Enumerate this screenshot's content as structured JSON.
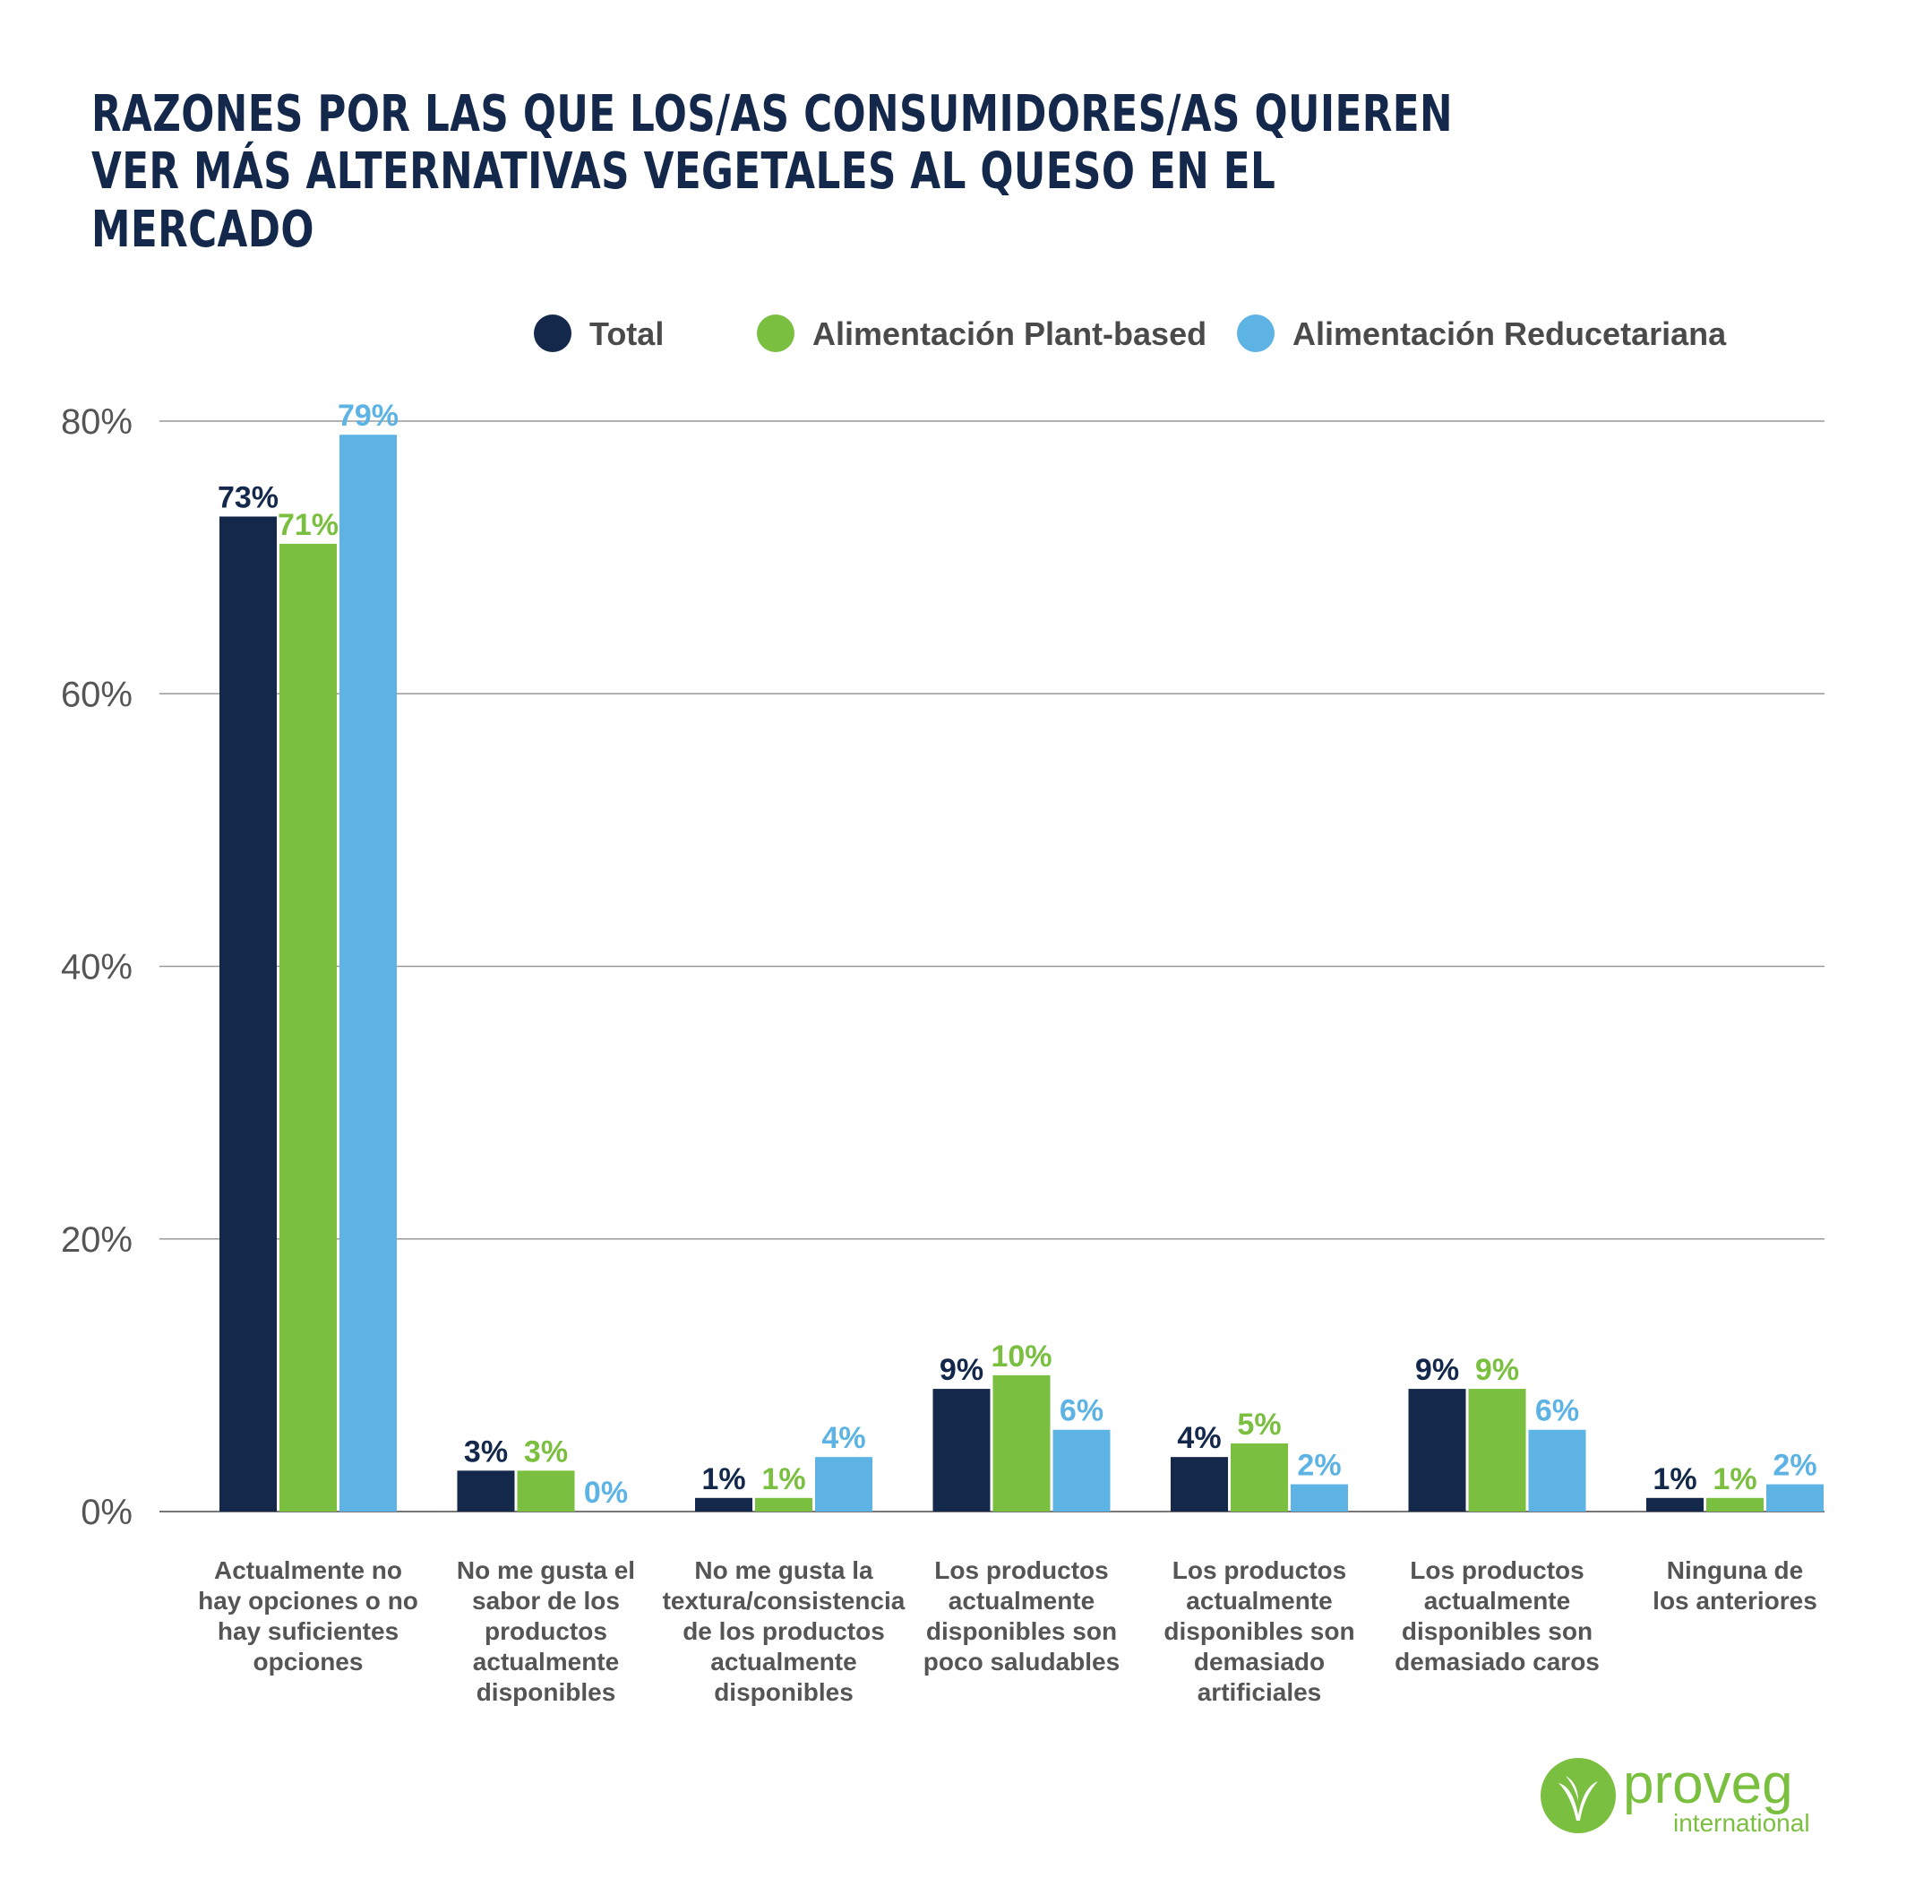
{
  "title": "RAZONES POR LAS QUE LOS/AS CONSUMIDORES/AS QUIEREN VER MÁS ALTERNATIVAS VEGETALES AL QUESO EN EL MERCADO",
  "logo": {
    "name": "proveg",
    "sub": "international",
    "color": "#7abf3f"
  },
  "chart_data": {
    "type": "bar",
    "title": "RAZONES POR LAS QUE LOS/AS CONSUMIDORES/AS QUIEREN VER MÁS ALTERNATIVAS VEGETALES AL QUESO EN EL MERCADO",
    "xlabel": "",
    "ylabel": "",
    "ylim": [
      0,
      80
    ],
    "yticks": [
      "0%",
      "20%",
      "40%",
      "60%",
      "80%"
    ],
    "grid": true,
    "legend_position": "top-center",
    "categories": [
      [
        "Actualmente no",
        "hay opciones o no",
        "hay suficientes",
        "opciones"
      ],
      [
        "No me gusta el",
        "sabor de los",
        "productos",
        "actualmente",
        "disponibles"
      ],
      [
        "No me gusta la",
        "textura/consistencia",
        "de los productos",
        "actualmente",
        "disponibles"
      ],
      [
        "Los productos",
        "actualmente",
        "disponibles son",
        "poco saludables"
      ],
      [
        "Los productos",
        "actualmente",
        "disponibles son",
        "demasiado",
        "artificiales"
      ],
      [
        "Los productos",
        "actualmente",
        "disponibles son",
        "demasiado caros"
      ],
      [
        "Ninguna de",
        "los anteriores"
      ]
    ],
    "series": [
      {
        "name": "Total",
        "color": "#13284a",
        "values": [
          73,
          3,
          1,
          9,
          4,
          9,
          1
        ]
      },
      {
        "name": "Alimentación Plant-based",
        "color": "#7abf3f",
        "values": [
          71,
          3,
          1,
          10,
          5,
          9,
          1
        ]
      },
      {
        "name": "Alimentación Reducetariana",
        "color": "#5db4e4",
        "values": [
          79,
          0,
          4,
          6,
          2,
          6,
          2
        ]
      }
    ]
  }
}
